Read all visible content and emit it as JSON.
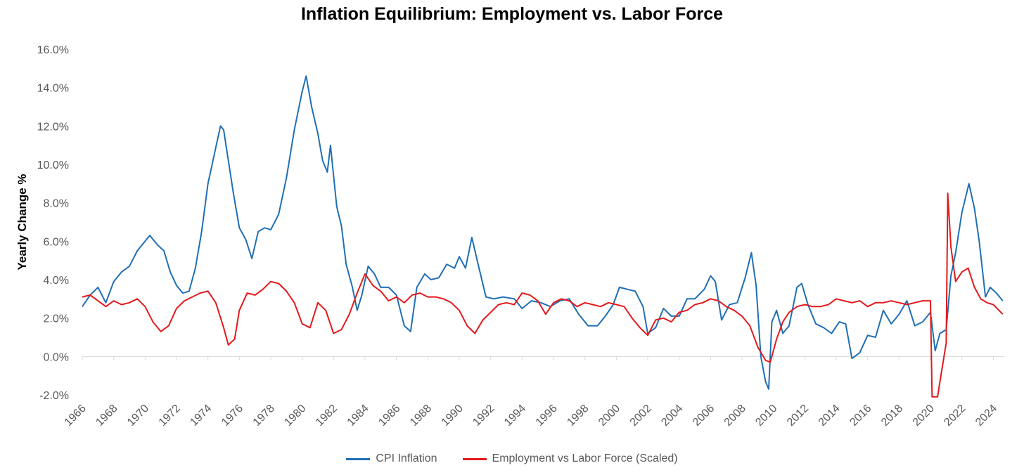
{
  "chart_data": {
    "type": "line",
    "title": "Inflation Equilibrium: Employment vs. Labor Force",
    "ylabel": "Yearly Change %",
    "xlabel": "",
    "ylim": [
      -2.0,
      16.0
    ],
    "yticks": [
      "16.0%",
      "14.0%",
      "12.0%",
      "10.0%",
      "8.0%",
      "6.0%",
      "4.0%",
      "2.0%",
      "0.0%",
      "-2.0%"
    ],
    "ytick_values": [
      16,
      14,
      12,
      10,
      8,
      6,
      4,
      2,
      0,
      -2
    ],
    "xlim": [
      1966,
      2024.7
    ],
    "xticks": [
      "1966",
      "1968",
      "1970",
      "1972",
      "1974",
      "1976",
      "1978",
      "1980",
      "1982",
      "1984",
      "1986",
      "1988",
      "1990",
      "1992",
      "1994",
      "1996",
      "1998",
      "2000",
      "2002",
      "2004",
      "2006",
      "2008",
      "2010",
      "2012",
      "2014",
      "2016",
      "2018",
      "2020",
      "2022",
      "2024"
    ],
    "grid": false,
    "legend": "bottom",
    "series": [
      {
        "name": "CPI Inflation",
        "color": "#1f6fb5",
        "points": [
          [
            1966.0,
            2.6
          ],
          [
            1966.5,
            3.2
          ],
          [
            1967.0,
            3.6
          ],
          [
            1967.5,
            2.8
          ],
          [
            1968.0,
            3.9
          ],
          [
            1968.5,
            4.4
          ],
          [
            1969.0,
            4.7
          ],
          [
            1969.5,
            5.5
          ],
          [
            1970.0,
            6.0
          ],
          [
            1970.3,
            6.3
          ],
          [
            1970.8,
            5.8
          ],
          [
            1971.2,
            5.5
          ],
          [
            1971.6,
            4.4
          ],
          [
            1972.0,
            3.7
          ],
          [
            1972.4,
            3.3
          ],
          [
            1972.8,
            3.4
          ],
          [
            1973.2,
            4.6
          ],
          [
            1973.6,
            6.5
          ],
          [
            1974.0,
            9.0
          ],
          [
            1974.4,
            10.5
          ],
          [
            1974.8,
            12.0
          ],
          [
            1975.0,
            11.8
          ],
          [
            1975.3,
            10.2
          ],
          [
            1975.6,
            8.6
          ],
          [
            1976.0,
            6.7
          ],
          [
            1976.4,
            6.1
          ],
          [
            1976.8,
            5.1
          ],
          [
            1977.2,
            6.5
          ],
          [
            1977.6,
            6.7
          ],
          [
            1978.0,
            6.6
          ],
          [
            1978.5,
            7.4
          ],
          [
            1979.0,
            9.3
          ],
          [
            1979.5,
            11.8
          ],
          [
            1980.0,
            13.8
          ],
          [
            1980.25,
            14.6
          ],
          [
            1980.6,
            13.0
          ],
          [
            1981.0,
            11.6
          ],
          [
            1981.3,
            10.2
          ],
          [
            1981.6,
            9.6
          ],
          [
            1981.8,
            11.0
          ],
          [
            1982.2,
            7.8
          ],
          [
            1982.5,
            6.8
          ],
          [
            1982.8,
            4.8
          ],
          [
            1983.2,
            3.6
          ],
          [
            1983.5,
            2.4
          ],
          [
            1983.8,
            3.2
          ],
          [
            1984.2,
            4.7
          ],
          [
            1984.6,
            4.3
          ],
          [
            1985.0,
            3.6
          ],
          [
            1985.5,
            3.6
          ],
          [
            1986.0,
            3.2
          ],
          [
            1986.5,
            1.6
          ],
          [
            1986.9,
            1.3
          ],
          [
            1987.3,
            3.6
          ],
          [
            1987.8,
            4.3
          ],
          [
            1988.2,
            4.0
          ],
          [
            1988.7,
            4.1
          ],
          [
            1989.2,
            4.8
          ],
          [
            1989.7,
            4.6
          ],
          [
            1990.0,
            5.2
          ],
          [
            1990.4,
            4.6
          ],
          [
            1990.8,
            6.2
          ],
          [
            1991.2,
            4.8
          ],
          [
            1991.7,
            3.1
          ],
          [
            1992.2,
            3.0
          ],
          [
            1992.8,
            3.1
          ],
          [
            1993.5,
            3.0
          ],
          [
            1994.0,
            2.5
          ],
          [
            1994.6,
            2.9
          ],
          [
            1995.2,
            2.8
          ],
          [
            1995.8,
            2.6
          ],
          [
            1996.4,
            2.9
          ],
          [
            1997.0,
            3.0
          ],
          [
            1997.6,
            2.2
          ],
          [
            1998.2,
            1.6
          ],
          [
            1998.8,
            1.6
          ],
          [
            1999.3,
            2.1
          ],
          [
            1999.8,
            2.7
          ],
          [
            2000.2,
            3.6
          ],
          [
            2000.7,
            3.5
          ],
          [
            2001.2,
            3.4
          ],
          [
            2001.7,
            2.6
          ],
          [
            2002.0,
            1.2
          ],
          [
            2002.5,
            1.5
          ],
          [
            2003.0,
            2.5
          ],
          [
            2003.5,
            2.1
          ],
          [
            2004.0,
            2.1
          ],
          [
            2004.5,
            3.0
          ],
          [
            2005.0,
            3.0
          ],
          [
            2005.6,
            3.5
          ],
          [
            2006.0,
            4.2
          ],
          [
            2006.3,
            3.9
          ],
          [
            2006.7,
            1.9
          ],
          [
            2007.2,
            2.7
          ],
          [
            2007.7,
            2.8
          ],
          [
            2008.2,
            4.1
          ],
          [
            2008.6,
            5.4
          ],
          [
            2008.9,
            3.7
          ],
          [
            2009.2,
            0.0
          ],
          [
            2009.5,
            -1.3
          ],
          [
            2009.7,
            -1.7
          ],
          [
            2009.9,
            1.8
          ],
          [
            2010.2,
            2.4
          ],
          [
            2010.6,
            1.2
          ],
          [
            2011.0,
            1.6
          ],
          [
            2011.5,
            3.6
          ],
          [
            2011.8,
            3.8
          ],
          [
            2012.2,
            2.7
          ],
          [
            2012.7,
            1.7
          ],
          [
            2013.2,
            1.5
          ],
          [
            2013.7,
            1.2
          ],
          [
            2014.2,
            1.8
          ],
          [
            2014.6,
            1.7
          ],
          [
            2015.0,
            -0.1
          ],
          [
            2015.5,
            0.2
          ],
          [
            2016.0,
            1.1
          ],
          [
            2016.5,
            1.0
          ],
          [
            2017.0,
            2.4
          ],
          [
            2017.5,
            1.7
          ],
          [
            2018.0,
            2.2
          ],
          [
            2018.5,
            2.9
          ],
          [
            2019.0,
            1.6
          ],
          [
            2019.5,
            1.8
          ],
          [
            2020.0,
            2.3
          ],
          [
            2020.3,
            0.3
          ],
          [
            2020.6,
            1.2
          ],
          [
            2021.0,
            1.4
          ],
          [
            2021.3,
            4.2
          ],
          [
            2021.6,
            5.4
          ],
          [
            2022.0,
            7.5
          ],
          [
            2022.45,
            9.0
          ],
          [
            2022.8,
            7.7
          ],
          [
            2023.1,
            6.0
          ],
          [
            2023.5,
            3.1
          ],
          [
            2023.8,
            3.6
          ],
          [
            2024.2,
            3.3
          ],
          [
            2024.6,
            2.9
          ]
        ]
      },
      {
        "name": "Employment vs Labor Force (Scaled)",
        "color": "#e31a1c",
        "points": [
          [
            1966.0,
            3.1
          ],
          [
            1966.5,
            3.2
          ],
          [
            1967.0,
            2.9
          ],
          [
            1967.5,
            2.6
          ],
          [
            1968.0,
            2.9
          ],
          [
            1968.5,
            2.7
          ],
          [
            1969.0,
            2.8
          ],
          [
            1969.5,
            3.0
          ],
          [
            1970.0,
            2.6
          ],
          [
            1970.5,
            1.8
          ],
          [
            1971.0,
            1.3
          ],
          [
            1971.5,
            1.6
          ],
          [
            1972.0,
            2.5
          ],
          [
            1972.5,
            2.9
          ],
          [
            1973.0,
            3.1
          ],
          [
            1973.5,
            3.3
          ],
          [
            1974.0,
            3.4
          ],
          [
            1974.5,
            2.8
          ],
          [
            1975.0,
            1.5
          ],
          [
            1975.3,
            0.6
          ],
          [
            1975.7,
            0.9
          ],
          [
            1976.0,
            2.4
          ],
          [
            1976.5,
            3.3
          ],
          [
            1977.0,
            3.2
          ],
          [
            1977.5,
            3.5
          ],
          [
            1978.0,
            3.9
          ],
          [
            1978.5,
            3.8
          ],
          [
            1979.0,
            3.4
          ],
          [
            1979.5,
            2.8
          ],
          [
            1980.0,
            1.7
          ],
          [
            1980.5,
            1.5
          ],
          [
            1981.0,
            2.8
          ],
          [
            1981.5,
            2.4
          ],
          [
            1982.0,
            1.2
          ],
          [
            1982.5,
            1.4
          ],
          [
            1983.0,
            2.2
          ],
          [
            1983.5,
            3.3
          ],
          [
            1984.0,
            4.3
          ],
          [
            1984.5,
            3.7
          ],
          [
            1985.0,
            3.4
          ],
          [
            1985.5,
            2.9
          ],
          [
            1986.0,
            3.1
          ],
          [
            1986.5,
            2.8
          ],
          [
            1987.0,
            3.2
          ],
          [
            1987.5,
            3.3
          ],
          [
            1988.0,
            3.1
          ],
          [
            1988.5,
            3.1
          ],
          [
            1989.0,
            3.0
          ],
          [
            1989.5,
            2.8
          ],
          [
            1990.0,
            2.4
          ],
          [
            1990.5,
            1.6
          ],
          [
            1991.0,
            1.2
          ],
          [
            1991.5,
            1.9
          ],
          [
            1992.0,
            2.3
          ],
          [
            1992.5,
            2.7
          ],
          [
            1993.0,
            2.8
          ],
          [
            1993.5,
            2.7
          ],
          [
            1994.0,
            3.3
          ],
          [
            1994.5,
            3.2
          ],
          [
            1995.0,
            2.9
          ],
          [
            1995.5,
            2.2
          ],
          [
            1996.0,
            2.8
          ],
          [
            1996.5,
            3.0
          ],
          [
            1997.0,
            2.9
          ],
          [
            1997.5,
            2.6
          ],
          [
            1998.0,
            2.8
          ],
          [
            1998.5,
            2.7
          ],
          [
            1999.0,
            2.6
          ],
          [
            1999.5,
            2.8
          ],
          [
            2000.0,
            2.7
          ],
          [
            2000.5,
            2.6
          ],
          [
            2001.0,
            2.0
          ],
          [
            2001.5,
            1.5
          ],
          [
            2002.0,
            1.1
          ],
          [
            2002.5,
            1.9
          ],
          [
            2003.0,
            2.0
          ],
          [
            2003.5,
            1.8
          ],
          [
            2004.0,
            2.3
          ],
          [
            2004.5,
            2.4
          ],
          [
            2005.0,
            2.7
          ],
          [
            2005.5,
            2.8
          ],
          [
            2006.0,
            3.0
          ],
          [
            2006.5,
            2.9
          ],
          [
            2007.0,
            2.6
          ],
          [
            2007.5,
            2.4
          ],
          [
            2008.0,
            2.1
          ],
          [
            2008.5,
            1.6
          ],
          [
            2009.0,
            0.5
          ],
          [
            2009.5,
            -0.2
          ],
          [
            2009.8,
            -0.3
          ],
          [
            2010.2,
            0.9
          ],
          [
            2010.6,
            1.8
          ],
          [
            2011.0,
            2.3
          ],
          [
            2011.5,
            2.6
          ],
          [
            2012.0,
            2.7
          ],
          [
            2012.5,
            2.6
          ],
          [
            2013.0,
            2.6
          ],
          [
            2013.5,
            2.7
          ],
          [
            2014.0,
            3.0
          ],
          [
            2014.5,
            2.9
          ],
          [
            2015.0,
            2.8
          ],
          [
            2015.5,
            2.9
          ],
          [
            2016.0,
            2.6
          ],
          [
            2016.5,
            2.8
          ],
          [
            2017.0,
            2.8
          ],
          [
            2017.5,
            2.9
          ],
          [
            2018.0,
            2.8
          ],
          [
            2018.5,
            2.7
          ],
          [
            2019.0,
            2.8
          ],
          [
            2019.5,
            2.9
          ],
          [
            2020.0,
            2.9
          ],
          [
            2020.1,
            -2.1
          ],
          [
            2020.45,
            -2.1
          ],
          [
            2020.7,
            -0.8
          ],
          [
            2021.0,
            0.7
          ],
          [
            2021.1,
            8.5
          ],
          [
            2021.3,
            5.7
          ],
          [
            2021.6,
            3.9
          ],
          [
            2022.0,
            4.4
          ],
          [
            2022.4,
            4.6
          ],
          [
            2022.8,
            3.6
          ],
          [
            2023.2,
            3.0
          ],
          [
            2023.6,
            2.8
          ],
          [
            2024.0,
            2.7
          ],
          [
            2024.6,
            2.2
          ]
        ]
      }
    ]
  }
}
